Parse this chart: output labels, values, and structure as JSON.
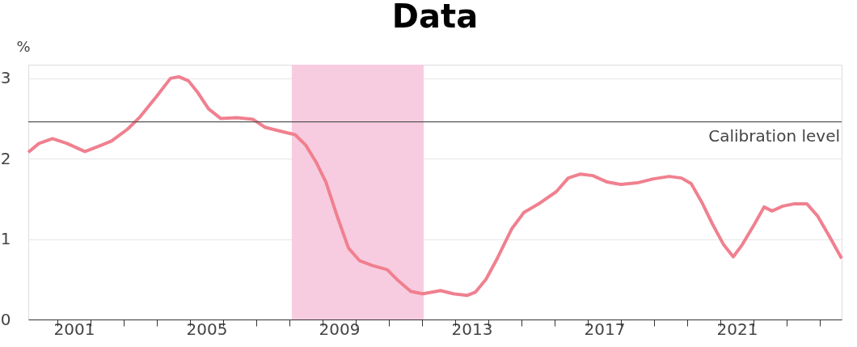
{
  "chart_data": {
    "type": "line",
    "title": "Data",
    "ylabel": "%",
    "x": [
      2000.12,
      2000.44,
      2000.85,
      2001.29,
      2001.83,
      2002.27,
      2002.63,
      2003.12,
      2003.49,
      2003.98,
      2004.41,
      2004.66,
      2004.95,
      2005.24,
      2005.56,
      2005.93,
      2006.41,
      2006.9,
      2007.27,
      2007.76,
      2008.17,
      2008.49,
      2008.8,
      2009.1,
      2009.46,
      2009.78,
      2010.12,
      2010.51,
      2010.95,
      2011.29,
      2011.66,
      2012.02,
      2012.56,
      2012.95,
      2013.37,
      2013.61,
      2013.93,
      2014.27,
      2014.71,
      2015.07,
      2015.56,
      2016.05,
      2016.41,
      2016.78,
      2017.15,
      2017.59,
      2018.0,
      2018.49,
      2018.98,
      2019.46,
      2019.83,
      2020.12,
      2020.44,
      2020.76,
      2021.1,
      2021.39,
      2021.66,
      2022.02,
      2022.32,
      2022.56,
      2022.88,
      2023.24,
      2023.61,
      2023.93,
      2024.27,
      2024.66
    ],
    "series": [
      {
        "color": "#f0808f",
        "values": [
          2.08,
          2.19,
          2.25,
          2.19,
          2.09,
          2.16,
          2.22,
          2.37,
          2.52,
          2.77,
          3.0,
          3.02,
          2.97,
          2.82,
          2.62,
          2.5,
          2.51,
          2.49,
          2.39,
          2.34,
          2.3,
          2.17,
          1.96,
          1.71,
          1.26,
          0.89,
          0.73,
          0.67,
          0.62,
          0.48,
          0.35,
          0.32,
          0.36,
          0.32,
          0.3,
          0.34,
          0.5,
          0.76,
          1.13,
          1.33,
          1.45,
          1.59,
          1.76,
          1.81,
          1.79,
          1.71,
          1.68,
          1.7,
          1.75,
          1.78,
          1.76,
          1.69,
          1.46,
          1.19,
          0.93,
          0.78,
          0.93,
          1.18,
          1.4,
          1.35,
          1.41,
          1.44,
          1.44,
          1.29,
          1.05,
          0.76
        ]
      }
    ],
    "xlim": [
      2000.12,
      2024.66
    ],
    "xticks": [
      {
        "value": 2001,
        "label": null
      },
      {
        "value": 2001.5,
        "label": "2001"
      },
      {
        "value": 2002,
        "label": null
      },
      {
        "value": 2003,
        "label": null
      },
      {
        "value": 2004,
        "label": null
      },
      {
        "value": 2005,
        "label": null
      },
      {
        "value": 2005.5,
        "label": "2005"
      },
      {
        "value": 2006,
        "label": null
      },
      {
        "value": 2007,
        "label": null
      },
      {
        "value": 2008,
        "label": null
      },
      {
        "value": 2009,
        "label": null
      },
      {
        "value": 2009.5,
        "label": "2009"
      },
      {
        "value": 2010,
        "label": null
      },
      {
        "value": 2011,
        "label": null
      },
      {
        "value": 2012,
        "label": null
      },
      {
        "value": 2013,
        "label": null
      },
      {
        "value": 2013.5,
        "label": "2013"
      },
      {
        "value": 2014,
        "label": null
      },
      {
        "value": 2015,
        "label": null
      },
      {
        "value": 2016,
        "label": null
      },
      {
        "value": 2017,
        "label": null
      },
      {
        "value": 2017.5,
        "label": "2017"
      },
      {
        "value": 2018,
        "label": null
      },
      {
        "value": 2019,
        "label": null
      },
      {
        "value": 2020,
        "label": null
      },
      {
        "value": 2021,
        "label": null
      },
      {
        "value": 2021.5,
        "label": "2021"
      },
      {
        "value": 2022,
        "label": null
      },
      {
        "value": 2023,
        "label": null
      },
      {
        "value": 2024,
        "label": null
      }
    ],
    "ylim": [
      0,
      3.17
    ],
    "yticks": [
      0,
      1,
      2,
      3
    ],
    "grid": "y",
    "legend": false,
    "marker": "none",
    "line_style": "solid",
    "ref_lines": [
      {
        "axis": "y",
        "value": 2.46,
        "label": "Calibration level",
        "color": "#555555"
      }
    ],
    "bands": [
      {
        "axis": "x",
        "from": 2008.07,
        "to": 2012.05,
        "color": "#f8cce0"
      }
    ]
  }
}
